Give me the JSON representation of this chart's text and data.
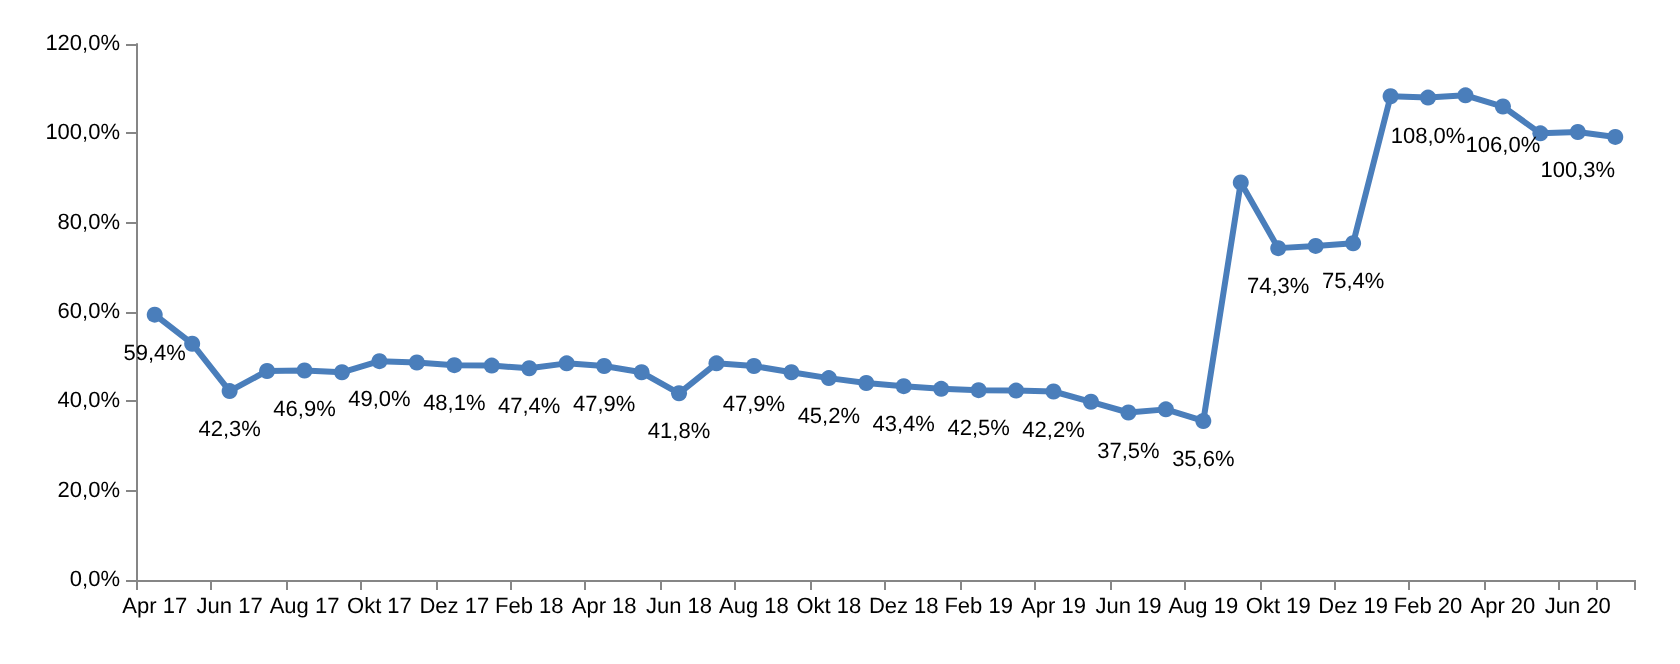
{
  "chart_data": {
    "type": "line",
    "categories": [
      "Apr 17",
      null,
      "Jun 17",
      null,
      "Aug 17",
      null,
      "Okt 17",
      null,
      "Dez 17",
      null,
      "Feb 18",
      null,
      "Apr 18",
      null,
      "Jun 18",
      null,
      "Aug 18",
      null,
      "Okt 18",
      null,
      "Dez 18",
      null,
      "Feb 19",
      null,
      "Apr 19",
      null,
      "Jun 19",
      null,
      "Aug 19",
      null,
      "Okt 19",
      null,
      "Dez 19",
      null,
      "Feb 20",
      null,
      "Apr 20",
      null,
      "Jun 20",
      null
    ],
    "series": [
      {
        "color": "#4a7ebb",
        "values": [
          59.4,
          52.9,
          42.3,
          46.8,
          46.9,
          46.5,
          49.0,
          48.7,
          48.1,
          48.0,
          47.4,
          48.5,
          47.9,
          46.5,
          41.8,
          48.5,
          47.9,
          46.5,
          45.2,
          44.1,
          43.4,
          42.8,
          42.5,
          42.4,
          42.2,
          39.9,
          37.5,
          38.2,
          35.6,
          89.0,
          74.3,
          74.8,
          75.4,
          108.3,
          108.0,
          108.5,
          106.0,
          100.0,
          100.3,
          99.2
        ],
        "value_labels": [
          "59,4%",
          null,
          "42,3%",
          null,
          "46,9%",
          null,
          "49,0%",
          null,
          "48,1%",
          null,
          "47,4%",
          null,
          "47,9%",
          null,
          "41,8%",
          null,
          "47,9%",
          null,
          "45,2%",
          null,
          "43,4%",
          null,
          "42,5%",
          null,
          "42,2%",
          null,
          "37,5%",
          null,
          "35,6%",
          null,
          "74,3%",
          null,
          "75,4%",
          null,
          "108,0%",
          null,
          "106,0%",
          null,
          "100,3%",
          null
        ]
      }
    ],
    "ylim": [
      0,
      120
    ],
    "yticks": [
      {
        "value": 0,
        "label": "0,0%"
      },
      {
        "value": 20,
        "label": "20,0%"
      },
      {
        "value": 40,
        "label": "40,0%"
      },
      {
        "value": 60,
        "label": "60,0%"
      },
      {
        "value": 80,
        "label": "80,0%"
      },
      {
        "value": 100,
        "label": "100,0%"
      },
      {
        "value": 120,
        "label": "120,0%"
      }
    ],
    "grid": false,
    "marker": "circle",
    "line_style": "solid"
  }
}
